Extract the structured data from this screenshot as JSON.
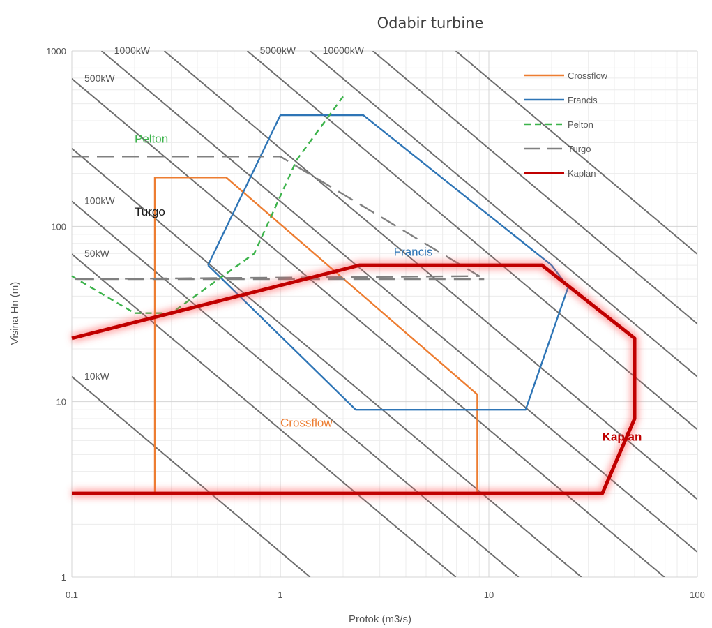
{
  "chart_data": {
    "type": "line",
    "title": "Odabir turbine",
    "xlabel": "Protok (m3/s)",
    "ylabel": "Visina Hn (m)",
    "x_scale": "log",
    "y_scale": "log",
    "xlim": [
      0.1,
      100
    ],
    "ylim": [
      1,
      1000
    ],
    "x_ticks": [
      "0.1",
      "1",
      "10",
      "100"
    ],
    "y_ticks": [
      "1",
      "10",
      "100",
      "1000"
    ],
    "grid": true,
    "legend_position": "top-right",
    "power_lines": [
      {
        "label": "10kW",
        "kw": 10,
        "show_label": true
      },
      {
        "label": "50kW",
        "kw": 50,
        "show_label": true
      },
      {
        "label": "100kW",
        "kw": 100,
        "show_label": true
      },
      {
        "label": "",
        "kw": 200,
        "show_label": false
      },
      {
        "label": "500kW",
        "kw": 500,
        "show_label": true
      },
      {
        "label": "1000kW",
        "kw": 1000,
        "show_label": true
      },
      {
        "label": "",
        "kw": 2000,
        "show_label": false
      },
      {
        "label": "5000kW",
        "kw": 5000,
        "show_label": true
      },
      {
        "label": "10000kW",
        "kw": 10000,
        "show_label": true
      },
      {
        "label": "",
        "kw": 20000,
        "show_label": false
      },
      {
        "label": "",
        "kw": 50000,
        "show_label": false
      }
    ],
    "series": [
      {
        "name": "Crossflow",
        "color": "#ED7D31",
        "style": "solid",
        "points": [
          [
            0.25,
            3
          ],
          [
            0.25,
            190
          ],
          [
            0.55,
            190
          ],
          [
            8.8,
            11
          ],
          [
            8.8,
            3
          ]
        ]
      },
      {
        "name": "Francis",
        "color": "#2E75B6",
        "style": "solid",
        "points": [
          [
            0.45,
            60
          ],
          [
            1.0,
            430
          ],
          [
            2.5,
            430
          ],
          [
            20,
            60
          ],
          [
            24,
            45
          ],
          [
            15,
            9
          ],
          [
            2.3,
            9
          ],
          [
            0.45,
            60
          ]
        ]
      },
      {
        "name": "Pelton",
        "color": "#3CB34B",
        "style": "dashed",
        "points": [
          [
            0.1,
            52
          ],
          [
            0.2,
            32
          ],
          [
            0.3,
            32
          ],
          [
            0.75,
            70
          ],
          [
            1.2,
            240
          ],
          [
            2.0,
            550
          ]
        ]
      },
      {
        "name": "Turgo",
        "color": "#808080",
        "style": "longdash",
        "points": [
          [
            0.1,
            250
          ],
          [
            1.0,
            250
          ],
          [
            9.0,
            52
          ],
          [
            0.1,
            50
          ],
          [
            9.5,
            50
          ]
        ]
      },
      {
        "name": "Kaplan",
        "color": "#C00000",
        "style": "solid",
        "points": [
          [
            0.1,
            23
          ],
          [
            2.4,
            60
          ],
          [
            18,
            60
          ],
          [
            50,
            23
          ],
          [
            50,
            8
          ],
          [
            35,
            3
          ],
          [
            0.1,
            3
          ]
        ]
      }
    ],
    "annotations": [
      {
        "text": "Pelton",
        "color": "#3CB34B",
        "x": 0.2,
        "y": 300
      },
      {
        "text": "Turgo",
        "color": "#1A1A1A",
        "x": 0.2,
        "y": 115
      },
      {
        "text": "Francis",
        "color": "#2E75B6",
        "x": 3.5,
        "y": 68
      },
      {
        "text": "Crossflow",
        "color": "#ED7D31",
        "x": 1.0,
        "y": 7.2
      },
      {
        "text": "Kaplan",
        "color": "#C00000",
        "x": 35,
        "y": 6
      }
    ]
  }
}
